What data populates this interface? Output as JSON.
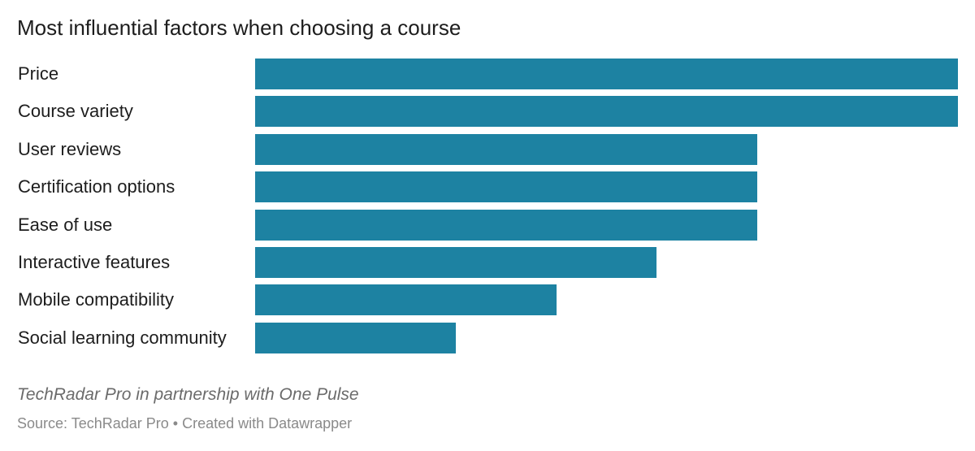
{
  "chart_data": {
    "type": "bar",
    "orientation": "horizontal",
    "title": "Most influential factors when choosing a course",
    "categories": [
      "Price",
      "Course variety",
      "User reviews",
      "Certification options",
      "Ease of use",
      "Interactive features",
      "Mobile compatibility",
      "Social learning community"
    ],
    "values": [
      7,
      7,
      5,
      5,
      5,
      4,
      3,
      2
    ],
    "xlim": [
      0,
      7
    ],
    "grid": false,
    "bar_color": "#1d82a2"
  },
  "footer": {
    "note": "TechRadar Pro in partnership with One Pulse",
    "source": "Source: TechRadar Pro • Created with Datawrapper"
  }
}
